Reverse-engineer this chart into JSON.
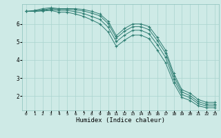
{
  "background_color": "#ceeae6",
  "grid_color": "#aad4ce",
  "line_color": "#2e7d72",
  "xlabel": "Humidex (Indice chaleur)",
  "xlim": [
    -0.5,
    23.5
  ],
  "ylim": [
    1.2,
    7.1
  ],
  "yticks": [
    2,
    3,
    4,
    5,
    6
  ],
  "xticks": [
    0,
    1,
    2,
    3,
    4,
    5,
    6,
    7,
    8,
    9,
    10,
    11,
    12,
    13,
    14,
    15,
    16,
    17,
    18,
    19,
    20,
    21,
    22,
    23
  ],
  "line1_x": [
    0,
    1,
    2,
    3,
    4,
    5,
    6,
    7,
    8,
    9,
    10,
    11,
    12,
    13,
    14,
    15,
    16,
    17,
    18,
    19,
    20,
    21,
    22,
    23
  ],
  "line1_y": [
    6.7,
    6.75,
    6.85,
    6.9,
    6.85,
    6.85,
    6.85,
    6.8,
    6.7,
    6.55,
    6.15,
    5.35,
    5.75,
    6.0,
    6.0,
    5.85,
    5.25,
    4.55,
    3.25,
    2.35,
    2.15,
    1.8,
    1.65,
    1.65
  ],
  "line2_x": [
    0,
    1,
    2,
    3,
    4,
    5,
    6,
    7,
    8,
    9,
    10,
    11,
    12,
    13,
    14,
    15,
    16,
    17,
    18,
    19,
    20,
    21,
    22,
    23
  ],
  "line2_y": [
    6.7,
    6.72,
    6.78,
    6.85,
    6.82,
    6.82,
    6.78,
    6.72,
    6.6,
    6.45,
    6.02,
    5.22,
    5.6,
    5.85,
    5.85,
    5.68,
    5.08,
    4.38,
    3.1,
    2.22,
    2.02,
    1.68,
    1.55,
    1.55
  ],
  "line3_x": [
    0,
    1,
    2,
    3,
    4,
    5,
    6,
    7,
    8,
    9,
    10,
    11,
    12,
    13,
    14,
    15,
    16,
    17,
    18,
    19,
    20,
    21,
    22,
    23
  ],
  "line3_y": [
    6.7,
    6.7,
    6.75,
    6.8,
    6.75,
    6.75,
    6.68,
    6.58,
    6.42,
    6.25,
    5.82,
    5.02,
    5.38,
    5.65,
    5.65,
    5.45,
    4.85,
    4.15,
    2.92,
    2.08,
    1.9,
    1.57,
    1.45,
    1.45
  ],
  "line4_x": [
    0,
    1,
    2,
    3,
    4,
    5,
    6,
    7,
    8,
    9,
    10,
    11,
    12,
    13,
    14,
    15,
    16,
    17,
    18,
    19,
    20,
    21,
    22,
    23
  ],
  "line4_y": [
    6.7,
    6.7,
    6.72,
    6.75,
    6.65,
    6.65,
    6.55,
    6.42,
    6.22,
    6.0,
    5.55,
    4.75,
    5.1,
    5.38,
    5.38,
    5.18,
    4.55,
    3.85,
    2.72,
    1.92,
    1.75,
    1.45,
    1.35,
    1.35
  ]
}
